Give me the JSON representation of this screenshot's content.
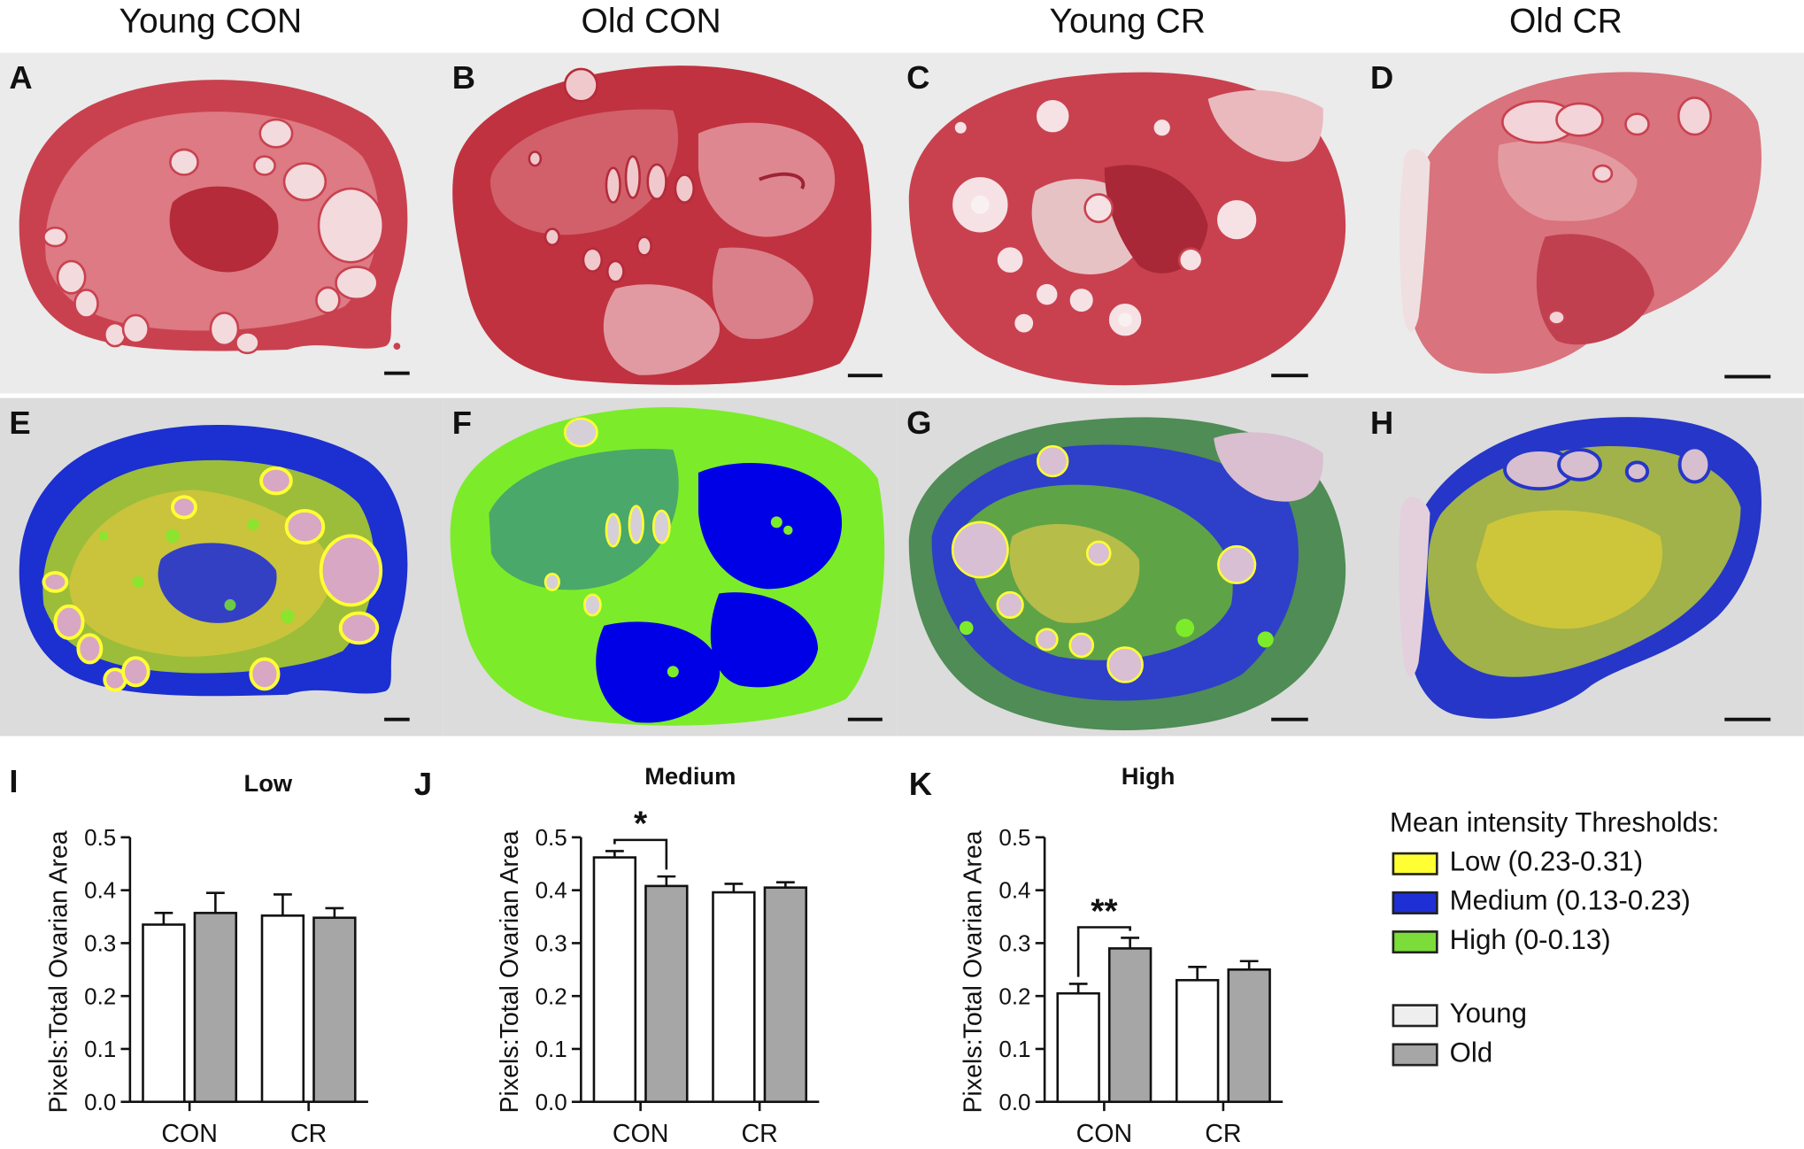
{
  "columns": [
    "Young CON",
    "Old CON",
    "Young CR",
    "Old CR"
  ],
  "he_panels": [
    {
      "letter": "A",
      "group": "Young CON"
    },
    {
      "letter": "B",
      "group": "Old CON"
    },
    {
      "letter": "C",
      "group": "Young CR"
    },
    {
      "letter": "D",
      "group": "Old CR"
    }
  ],
  "threshold_panels": [
    {
      "letter": "E",
      "group": "Young CON"
    },
    {
      "letter": "F",
      "group": "Old CON"
    },
    {
      "letter": "G",
      "group": "Young CR"
    },
    {
      "letter": "H",
      "group": "Old CR"
    }
  ],
  "colors": {
    "he_tissue": "#c9414f",
    "he_light": "#e8a5ab",
    "he_dark": "#b52b3a",
    "he_follicle": "#f3dadd",
    "th_low": "#ffff33",
    "th_medium": "#0000e6",
    "th_high": "#7cec2a",
    "young_bar": "#ffffff",
    "old_bar": "#a6a6a6"
  },
  "legend": {
    "title": "Mean intensity Thresholds:",
    "thresholds": [
      {
        "label": "Low (0.23-0.31)",
        "color": "#ffff33"
      },
      {
        "label": "Medium (0.13-0.23)",
        "color": "#1f2fd6"
      },
      {
        "label": "High (0-0.13)",
        "color": "#7cdc3a"
      }
    ],
    "groups": [
      {
        "label": "Young",
        "color": "#eeeeee"
      },
      {
        "label": "Old",
        "color": "#a6a6a6"
      }
    ]
  },
  "chart_data": [
    {
      "panel": "I",
      "type": "bar",
      "title": "Low",
      "ylabel": "Pixels:Total Ovarian Area",
      "categories": [
        "CON",
        "CR"
      ],
      "series": [
        {
          "name": "Young",
          "values": [
            0.335,
            0.352
          ],
          "errors": [
            0.022,
            0.04
          ]
        },
        {
          "name": "Old",
          "values": [
            0.357,
            0.348
          ],
          "errors": [
            0.038,
            0.018
          ]
        }
      ],
      "ylim": [
        0,
        0.5
      ],
      "yticks": [
        "0.0",
        "0.1",
        "0.2",
        "0.3",
        "0.4",
        "0.5"
      ],
      "significance": []
    },
    {
      "panel": "J",
      "type": "bar",
      "title": "Medium",
      "ylabel": "Pixels:Total Ovarian Area",
      "categories": [
        "CON",
        "CR"
      ],
      "series": [
        {
          "name": "Young",
          "values": [
            0.462,
            0.396
          ],
          "errors": [
            0.012,
            0.016
          ]
        },
        {
          "name": "Old",
          "values": [
            0.408,
            0.405
          ],
          "errors": [
            0.018,
            0.01
          ]
        }
      ],
      "ylim": [
        0,
        0.5
      ],
      "yticks": [
        "0.0",
        "0.1",
        "0.2",
        "0.3",
        "0.4",
        "0.5"
      ],
      "significance": [
        {
          "category": "CON",
          "label": "*",
          "bracket_y": 0.495
        }
      ]
    },
    {
      "panel": "K",
      "type": "bar",
      "title": "High",
      "ylabel": "Pixels:Total Ovarian Area",
      "categories": [
        "CON",
        "CR"
      ],
      "series": [
        {
          "name": "Young",
          "values": [
            0.205,
            0.23
          ],
          "errors": [
            0.018,
            0.025
          ]
        },
        {
          "name": "Old",
          "values": [
            0.29,
            0.25
          ],
          "errors": [
            0.02,
            0.016
          ]
        }
      ],
      "ylim": [
        0,
        0.5
      ],
      "yticks": [
        "0.0",
        "0.1",
        "0.2",
        "0.3",
        "0.4",
        "0.5"
      ],
      "significance": [
        {
          "category": "CON",
          "label": "**",
          "bracket_y": 0.33
        }
      ]
    }
  ]
}
